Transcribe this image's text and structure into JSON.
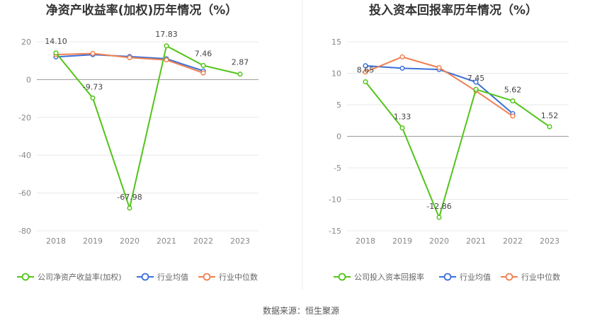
{
  "source_text": "数据来源：恒生聚源",
  "chart_data": [
    {
      "type": "line",
      "title": "净资产收益率(加权)历年情况（%）",
      "categories": [
        "2018",
        "2019",
        "2020",
        "2021",
        "2022",
        "2023"
      ],
      "ylim": [
        -80,
        20
      ],
      "yticks": [
        20,
        0,
        -20,
        -40,
        -60,
        -80
      ],
      "grid": true,
      "legend_position": "bottom",
      "series": [
        {
          "name": "公司净资产收益率(加权)",
          "color": "#52c41a",
          "values": [
            14.1,
            -9.73,
            -67.98,
            17.83,
            7.46,
            2.87
          ],
          "labels": [
            "14.10",
            "-9.73",
            "-67.98",
            "17.83",
            "7.46",
            "2.87"
          ]
        },
        {
          "name": "行业均值",
          "color": "#3b6fd8",
          "values": [
            12.0,
            13.2,
            12.2,
            11.0,
            4.6,
            null
          ]
        },
        {
          "name": "行业中位数",
          "color": "#f08050",
          "values": [
            13.2,
            13.8,
            11.6,
            10.4,
            3.5,
            null
          ]
        }
      ]
    },
    {
      "type": "line",
      "title": "投入资本回报率历年情况（%）",
      "categories": [
        "2018",
        "2019",
        "2020",
        "2021",
        "2022",
        "2023"
      ],
      "ylim": [
        -15,
        15
      ],
      "yticks": [
        15,
        10,
        5,
        0,
        -5,
        -10,
        -15
      ],
      "grid": true,
      "legend_position": "bottom",
      "series": [
        {
          "name": "公司投入资本回报率",
          "color": "#52c41a",
          "values": [
            8.65,
            1.33,
            -12.86,
            7.45,
            5.62,
            1.52
          ],
          "labels": [
            "8.65",
            "1.33",
            "-12.86",
            "7.45",
            "5.62",
            "1.52"
          ]
        },
        {
          "name": "行业均值",
          "color": "#3b6fd8",
          "values": [
            11.2,
            10.8,
            10.6,
            8.6,
            3.6,
            null
          ]
        },
        {
          "name": "行业中位数",
          "color": "#f08050",
          "values": [
            10.2,
            12.6,
            10.9,
            7.2,
            3.2,
            null
          ]
        }
      ]
    }
  ]
}
